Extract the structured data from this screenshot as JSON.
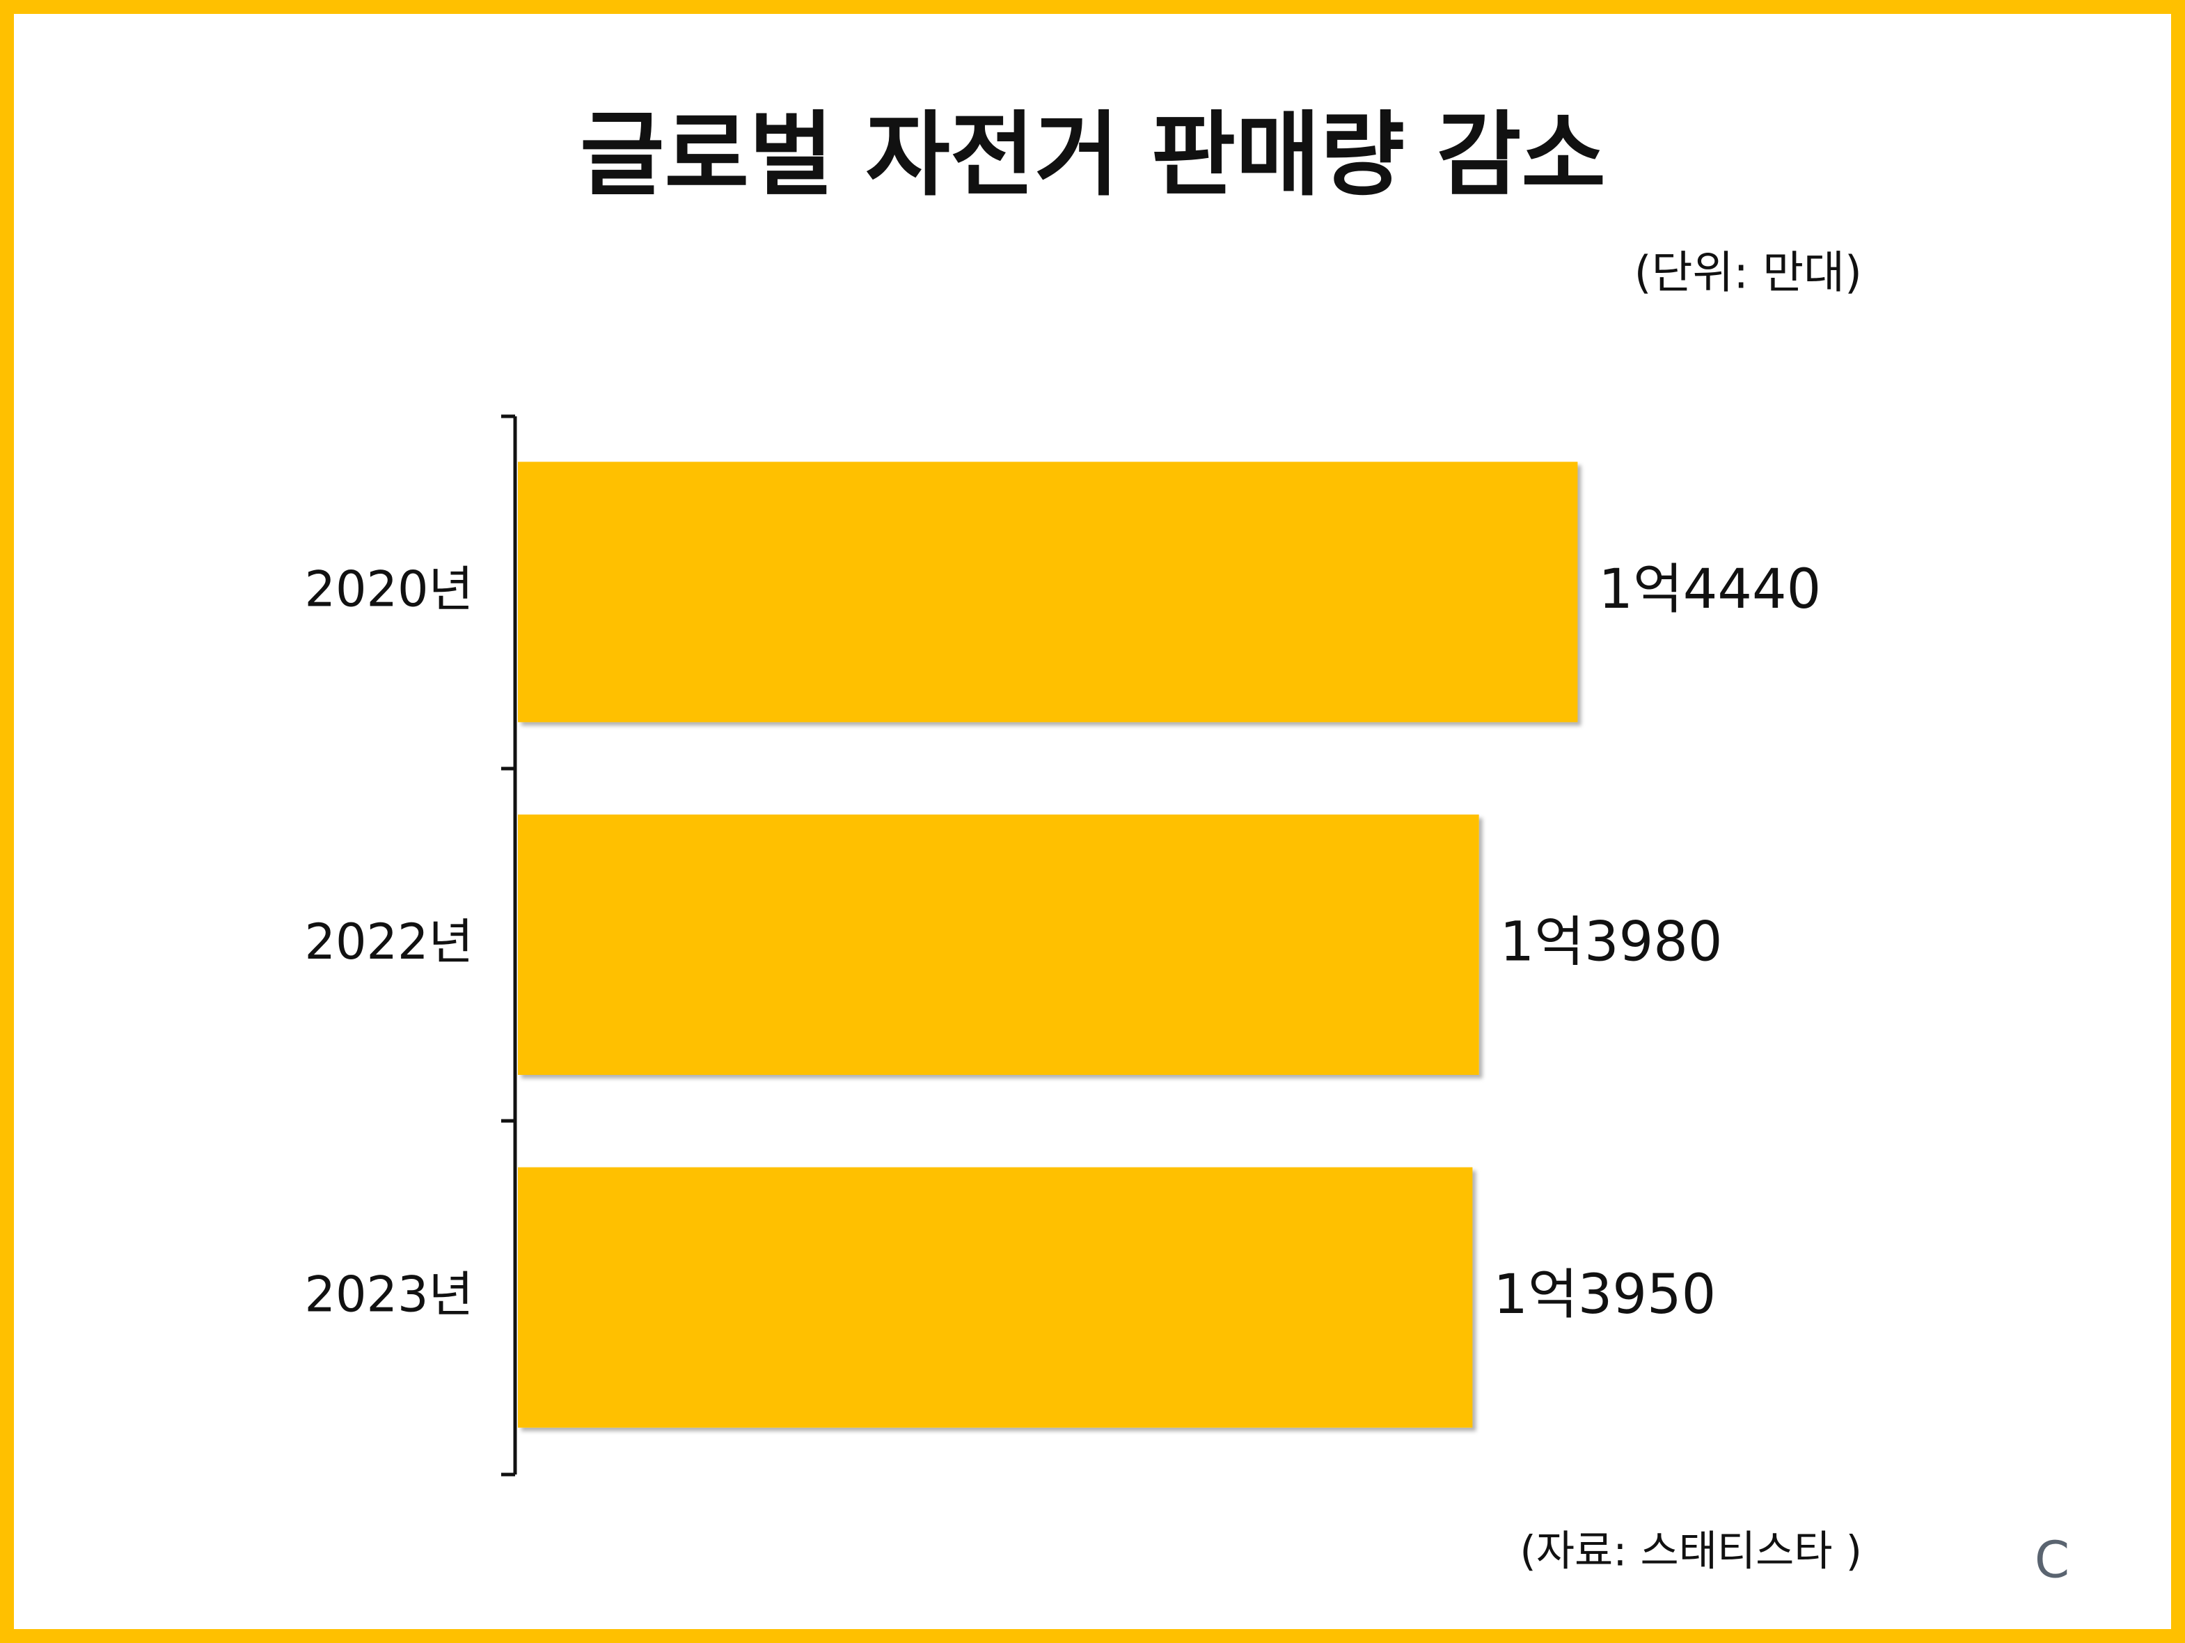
{
  "chart_data": {
    "type": "barh",
    "title": "글로벌 자전거 판매량 감소",
    "subtitle": "(단위: 만대)",
    "categories": [
      "2020년",
      "2022년",
      "2023년"
    ],
    "values": [
      14440,
      13980,
      13950
    ],
    "value_labels": [
      "1억4440",
      "1억3980",
      "1억3950"
    ],
    "color": "#ffc000",
    "xlim": [
      9500,
      15000
    ],
    "source": "(자료: 스태티스타 )",
    "watermark": "C"
  }
}
